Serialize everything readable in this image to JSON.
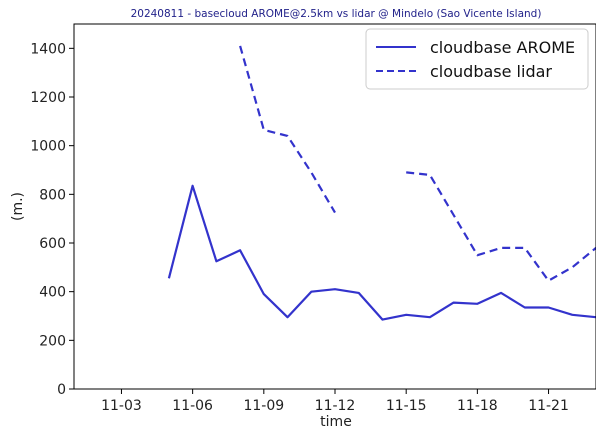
{
  "chart_data": {
    "type": "line",
    "title": "20240811 - basecloud AROME@2.5km vs lidar @ Mindelo (Sao Vicente Island)",
    "xlabel": "time",
    "ylabel": "(m.)",
    "x": [
      "11-01",
      "11-02",
      "11-03",
      "11-04",
      "11-05",
      "11-06",
      "11-07",
      "11-08",
      "11-09",
      "11-10",
      "11-11",
      "11-12",
      "11-13",
      "11-14",
      "11-15",
      "11-16",
      "11-17",
      "11-18",
      "11-19",
      "11-20",
      "11-21",
      "11-22",
      "11-23"
    ],
    "xticks": [
      "11-03",
      "11-06",
      "11-09",
      "11-12",
      "11-15",
      "11-18",
      "11-21"
    ],
    "yticks": [
      0,
      200,
      400,
      600,
      800,
      1000,
      1200,
      1400
    ],
    "ylim": [
      0,
      1500
    ],
    "grid": false,
    "legend_position": "top-right",
    "series": [
      {
        "name": "cloudbase AROME",
        "style": "solid",
        "color": "#3333cc",
        "values": [
          null,
          null,
          null,
          null,
          455,
          835,
          525,
          570,
          390,
          295,
          400,
          410,
          395,
          285,
          305,
          295,
          355,
          350,
          395,
          335,
          335,
          305,
          295
        ]
      },
      {
        "name": "cloudbase lidar",
        "style": "dashed",
        "color": "#3333cc",
        "values": [
          null,
          null,
          null,
          null,
          null,
          null,
          null,
          1410,
          1065,
          1040,
          890,
          725,
          null,
          null,
          890,
          880,
          715,
          550,
          580,
          580,
          445,
          500,
          580
        ]
      }
    ]
  }
}
